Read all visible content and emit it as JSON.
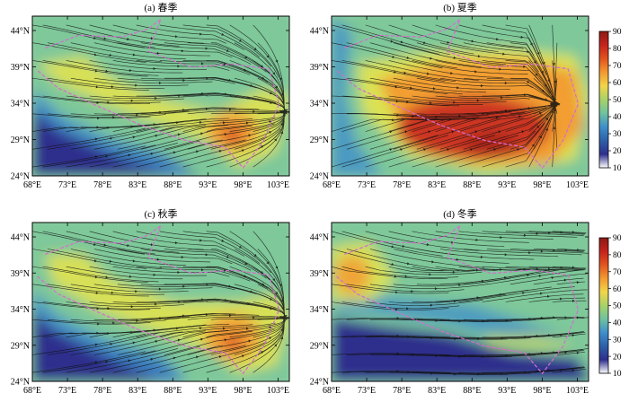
{
  "panels": [
    {
      "title": "(a) 春季",
      "season": "spring"
    },
    {
      "title": "(b) 夏季",
      "season": "summer"
    },
    {
      "title": "(c) 秋季",
      "season": "autumn"
    },
    {
      "title": "(d) 冬季",
      "season": "winter"
    }
  ],
  "x_ticks": [
    "68°E",
    "73°E",
    "78°E",
    "83°E",
    "88°E",
    "93°E",
    "98°E",
    "103°E"
  ],
  "y_ticks": [
    "44°N",
    "39°N",
    "34°N",
    "29°N",
    "24°N"
  ],
  "colorbar": {
    "ticks": [
      "90",
      "80",
      "70",
      "60",
      "50",
      "40",
      "30",
      "20",
      "10"
    ],
    "range": [
      10,
      90
    ]
  },
  "colors": {
    "low": "#2e2f8c",
    "mid_low": "#3f8ecb",
    "mid": "#7ec89a",
    "mid_high": "#e6e44a",
    "high": "#f39a32",
    "very_high": "#c6231e",
    "boundary": "#d66cd0"
  }
}
